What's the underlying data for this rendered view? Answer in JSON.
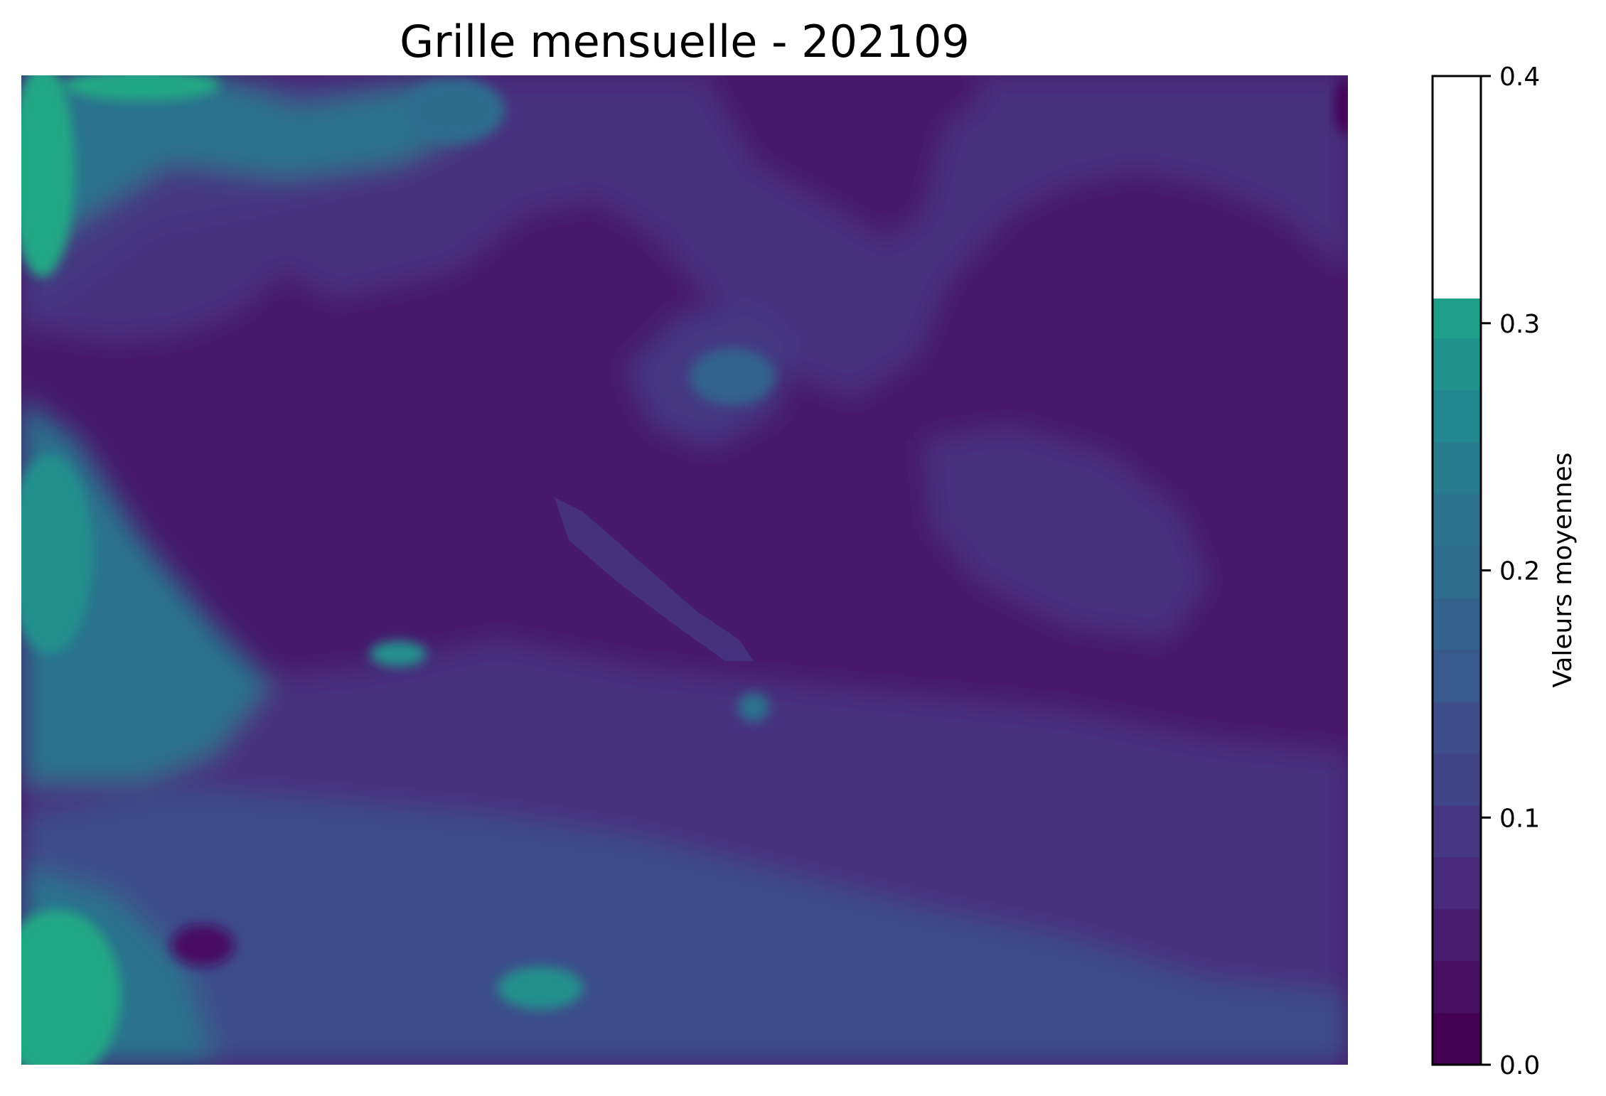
{
  "chart_data": {
    "type": "heatmap",
    "title": "Grille mensuelle - 202109",
    "colormap": "viridis",
    "colorbar": {
      "label": "Valeurs moyennes",
      "range": [
        0.0,
        0.4
      ],
      "filled_range": [
        0.0,
        0.31
      ],
      "ticks": [
        0.0,
        0.1,
        0.2,
        0.3,
        0.4
      ],
      "tick_labels": [
        "0.0",
        "0.1",
        "0.2",
        "0.3",
        "0.4"
      ],
      "levels": [
        0.0,
        0.021,
        0.042,
        0.063,
        0.084,
        0.105,
        0.126,
        0.147,
        0.168,
        0.189,
        0.21,
        0.231,
        0.252,
        0.273,
        0.294,
        0.31
      ],
      "level_colors": [
        "#440154",
        "#471063",
        "#481d6f",
        "#472a7a",
        "#453781",
        "#414487",
        "#3d4e8a",
        "#38598c",
        "#33638d",
        "#2f6c8e",
        "#2c728e",
        "#287c8e",
        "#24868e",
        "#21918c",
        "#1f9e89",
        "#22a884"
      ]
    },
    "axes_visible": false,
    "field_description_values": {
      "background_level": 0.06,
      "maximum_level": 0.31
    }
  }
}
